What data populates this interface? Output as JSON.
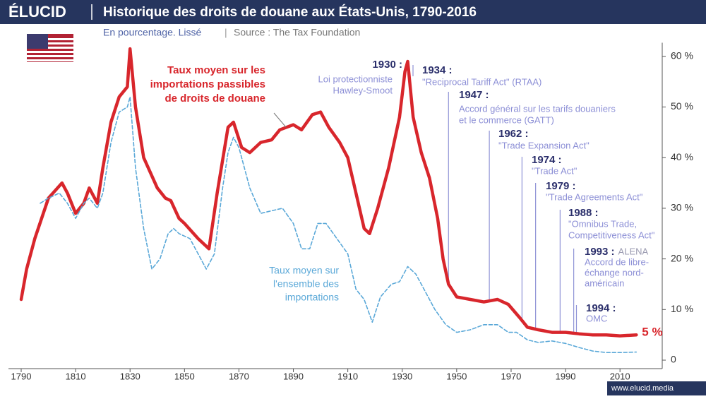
{
  "brand": "ÉLUCID",
  "footer": "www.elucid.media",
  "chart_data": {
    "type": "line",
    "title": "Historique des droits de douane aux États-Unis, 1790-2016",
    "subtitle": "En pourcentage. Lissé",
    "source": "Source : The Tax Foundation",
    "xlim": [
      1790,
      2025
    ],
    "ylim": [
      0,
      62
    ],
    "xticks": [
      1790,
      1810,
      1830,
      1850,
      1870,
      1890,
      1910,
      1930,
      1950,
      1970,
      1990,
      2010
    ],
    "yticks": [
      0,
      {
        "value": 10,
        "label": "10 %"
      },
      {
        "value": 20,
        "label": "20 %"
      },
      {
        "value": 30,
        "label": "30 %"
      },
      {
        "value": 40,
        "label": "40 %"
      },
      {
        "value": 50,
        "label": "50 %"
      },
      {
        "value": 60,
        "label": "60 %"
      }
    ],
    "grid": false,
    "series": [
      {
        "label": [
          "Taux moyen sur les",
          "importations passibles",
          "de droits de douane"
        ],
        "color": "#d8262c",
        "dashed": false,
        "end_label": "5 %",
        "x": [
          1790,
          1792,
          1795,
          1800,
          1805,
          1807,
          1810,
          1813,
          1815,
          1818,
          1820,
          1823,
          1826,
          1829,
          1830,
          1832,
          1835,
          1840,
          1843,
          1845,
          1848,
          1850,
          1855,
          1859,
          1862,
          1866,
          1868,
          1871,
          1874,
          1878,
          1882,
          1885,
          1890,
          1893,
          1897,
          1900,
          1903,
          1907,
          1910,
          1913,
          1916,
          1918,
          1921,
          1925,
          1929,
          1931,
          1932,
          1934,
          1937,
          1940,
          1943,
          1945,
          1947,
          1950,
          1955,
          1960,
          1965,
          1969,
          1973,
          1976,
          1980,
          1985,
          1990,
          1995,
          2000,
          2005,
          2010,
          2016
        ],
        "values": [
          12,
          18,
          24,
          32,
          35,
          33,
          29,
          31,
          34,
          31,
          38,
          47,
          52,
          54,
          61.5,
          50,
          40,
          34,
          32,
          31.5,
          28,
          27,
          24,
          22,
          33,
          46,
          47,
          42,
          41,
          43,
          43.5,
          45.5,
          46.5,
          45.5,
          48.5,
          49,
          46,
          43,
          40,
          33,
          26,
          25,
          30,
          38,
          48,
          57,
          59,
          48,
          41,
          36,
          28,
          20,
          15,
          12.5,
          12,
          11.5,
          12,
          11,
          8.5,
          6.5,
          6,
          5.5,
          5.5,
          5.2,
          5,
          5,
          4.8,
          5
        ]
      },
      {
        "label": [
          "Taux moyen sur",
          "l'ensemble des",
          "importations"
        ],
        "color": "#5aa8d8",
        "dashed": true,
        "x": [
          1797,
          1800,
          1804,
          1807,
          1810,
          1813,
          1815,
          1818,
          1820,
          1823,
          1826,
          1829,
          1830,
          1832,
          1835,
          1838,
          1841,
          1844,
          1846,
          1848,
          1852,
          1855,
          1858,
          1861,
          1864,
          1866,
          1868,
          1870,
          1874,
          1878,
          1882,
          1886,
          1890,
          1893,
          1896,
          1899,
          1902,
          1906,
          1910,
          1913,
          1916,
          1919,
          1922,
          1926,
          1929,
          1932,
          1935,
          1938,
          1942,
          1946,
          1950,
          1955,
          1960,
          1965,
          1969,
          1972,
          1976,
          1980,
          1985,
          1990,
          1995,
          2000,
          2005,
          2010,
          2016
        ],
        "values": [
          31,
          32,
          33,
          31,
          28,
          31,
          32,
          30,
          33,
          43,
          49,
          50,
          52,
          38,
          26,
          18,
          20,
          25,
          26,
          25,
          24,
          21,
          18,
          21,
          34,
          41,
          44,
          42,
          34,
          29,
          29.5,
          30,
          27,
          22,
          22,
          27,
          27,
          24,
          21,
          14,
          12,
          7.5,
          12.5,
          15,
          15.5,
          18.5,
          17,
          14,
          10,
          7,
          5.5,
          6,
          7,
          7,
          5.5,
          5.5,
          4,
          3.5,
          3.8,
          3.3,
          2.5,
          1.8,
          1.5,
          1.5,
          1.6
        ]
      }
    ],
    "annotations": [
      {
        "year": 1930,
        "year_label": "1930 :",
        "lines": [
          "Loi protectionniste",
          "Hawley-Smoot"
        ]
      },
      {
        "year": 1934,
        "year_label": "1934 :",
        "lines": [
          "\"Reciprocal Tariff Act\" (RTAA)"
        ]
      },
      {
        "year": 1947,
        "year_label": "1947 :",
        "lines": [
          "Accord général sur les tarifs douaniers",
          "et le commerce (GATT)"
        ]
      },
      {
        "year": 1962,
        "year_label": "1962 :",
        "lines": [
          "\"Trade Expansion Act\""
        ]
      },
      {
        "year": 1974,
        "year_label": "1974 :",
        "lines": [
          "\"Trade Act\""
        ]
      },
      {
        "year": 1979,
        "year_label": "1979 :",
        "lines": [
          "\"Trade Agreements Act\""
        ]
      },
      {
        "year": 1988,
        "year_label": "1988 :",
        "lines": [
          "\"Omnibus Trade,",
          "Competitiveness Act\""
        ]
      },
      {
        "year": 1993,
        "year_label": "1993 :",
        "suffix": "ALENA",
        "lines": [
          "Accord de libre-",
          "échange nord-",
          "américain"
        ]
      },
      {
        "year": 1994,
        "year_label": "1994 :",
        "lines": [
          "OMC"
        ]
      }
    ]
  }
}
